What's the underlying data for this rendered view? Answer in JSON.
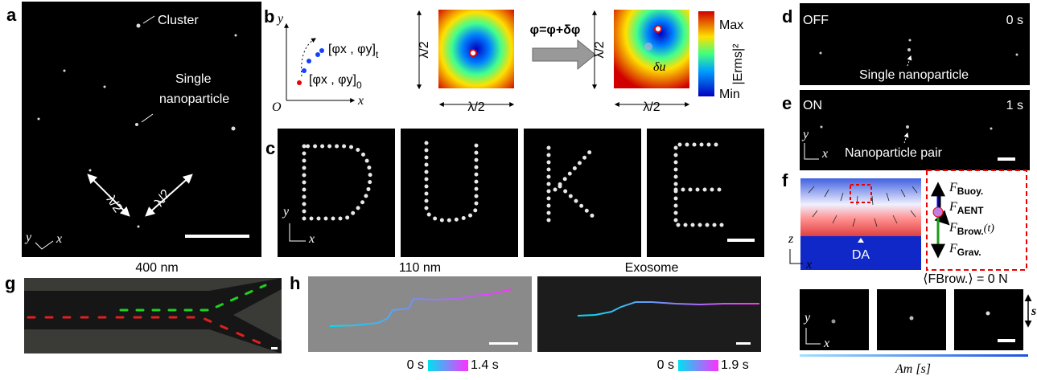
{
  "panels": {
    "a": {
      "label": "a",
      "cluster": "Cluster",
      "single": [
        "Single",
        "nanoparticle"
      ],
      "lambda": "λ/2",
      "axis_y": "y",
      "axis_x": "x"
    },
    "b": {
      "label": "b",
      "axis_y": "y",
      "axis_x": "x",
      "origin": "O",
      "state_t": {
        "text": "[φx , φy]",
        "sub": "t"
      },
      "state_0": {
        "text": "[φx , φy]",
        "sub": "0"
      },
      "lambda": "λ/2",
      "update": "φ=φ+δφ",
      "displacement": "δu",
      "colorbar_max": "Max",
      "colorbar_quantity": "|Erms|²",
      "colorbar_min": "Min"
    },
    "c": {
      "label": "c",
      "axis_y": "y",
      "axis_x": "x"
    },
    "d": {
      "label": "d",
      "state": "OFF",
      "time": "0 s",
      "caption": "Single nanoparticle"
    },
    "e": {
      "label": "e",
      "state": "ON",
      "time": "1 s",
      "caption": "Nanoparticle pair",
      "axis_y": "y",
      "axis_x": "x"
    },
    "f": {
      "label": "f",
      "axis_z": "z",
      "axis_x": "x",
      "da": "DA",
      "force_symbol": "F",
      "forces": [
        "Buoy.",
        "AENT",
        "Brow.",
        "Grav."
      ],
      "brownian_time": "(t)",
      "mean_brownian": "⟨FBrow.⟩ = 0 N",
      "axis_y": "y",
      "step": "s",
      "amplitude": "Am [s]"
    },
    "g": {
      "label": "g",
      "title": "400 nm"
    },
    "h": {
      "label": "h",
      "titles": [
        "110 nm",
        "Exosome"
      ],
      "time_start": "0 s",
      "time_ends": [
        "1.4 s",
        "1.9 s"
      ]
    }
  }
}
